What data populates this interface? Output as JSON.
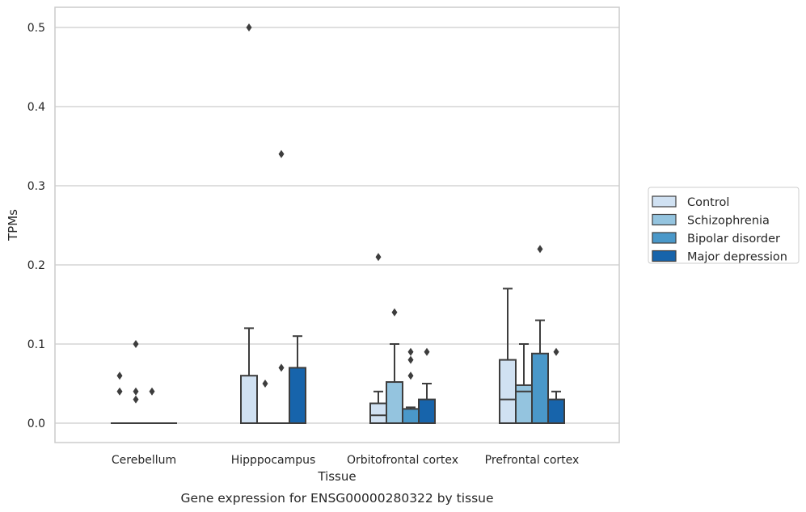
{
  "caption": "Gene expression for ENSG00000280322 by tissue",
  "chart_data": {
    "type": "box",
    "xlabel": "Tissue",
    "ylabel": "TPMs",
    "ylim": [
      -0.025,
      0.525
    ],
    "yticks": [
      0.0,
      0.1,
      0.2,
      0.3,
      0.4,
      0.5
    ],
    "ytick_labels": [
      "0.0",
      "0.1",
      "0.2",
      "0.3",
      "0.4",
      "0.5"
    ],
    "grid": "horizontal",
    "legend_position": "right",
    "categories": [
      "Cerebellum",
      "Hipppocampus",
      "Orbitofrontal cortex",
      "Prefrontal cortex"
    ],
    "series": [
      {
        "name": "Control",
        "color": "#d0e1f2",
        "boxes": [
          {
            "q1": 0,
            "median": 0,
            "q3": 0,
            "whisker_low": 0,
            "whisker_high": 0,
            "outliers": [
              0.04,
              0.06
            ]
          },
          {
            "q1": 0,
            "median": 0,
            "q3": 0.06,
            "whisker_low": 0,
            "whisker_high": 0.12,
            "outliers": [
              0.5
            ]
          },
          {
            "q1": 0,
            "median": 0.01,
            "q3": 0.025,
            "whisker_low": 0,
            "whisker_high": 0.04,
            "outliers": [
              0.21
            ]
          },
          {
            "q1": 0,
            "median": 0.03,
            "q3": 0.08,
            "whisker_low": 0,
            "whisker_high": 0.17,
            "outliers": []
          }
        ]
      },
      {
        "name": "Schizophrenia",
        "color": "#94c4df",
        "boxes": [
          {
            "q1": 0,
            "median": 0,
            "q3": 0,
            "whisker_low": 0,
            "whisker_high": 0,
            "outliers": [
              0.1,
              0.03,
              0.04
            ]
          },
          {
            "q1": 0,
            "median": 0,
            "q3": 0,
            "whisker_low": 0,
            "whisker_high": 0,
            "outliers": [
              0.05
            ]
          },
          {
            "q1": 0,
            "median": 0,
            "q3": 0.052,
            "whisker_low": 0,
            "whisker_high": 0.1,
            "outliers": [
              0.14
            ]
          },
          {
            "q1": 0,
            "median": 0.04,
            "q3": 0.048,
            "whisker_low": 0,
            "whisker_high": 0.1,
            "outliers": []
          }
        ]
      },
      {
        "name": "Bipolar disorder",
        "color": "#4a98c9",
        "boxes": [
          {
            "q1": 0,
            "median": 0,
            "q3": 0,
            "whisker_low": 0,
            "whisker_high": 0,
            "outliers": [
              0.04
            ]
          },
          {
            "q1": 0,
            "median": 0,
            "q3": 0,
            "whisker_low": 0,
            "whisker_high": 0,
            "outliers": [
              0.07,
              0.34
            ]
          },
          {
            "q1": 0,
            "median": 0,
            "q3": 0.018,
            "whisker_low": 0,
            "whisker_high": 0.02,
            "outliers": [
              0.06,
              0.08,
              0.09
            ]
          },
          {
            "q1": 0,
            "median": 0,
            "q3": 0.088,
            "whisker_low": 0,
            "whisker_high": 0.13,
            "outliers": [
              0.22
            ]
          }
        ]
      },
      {
        "name": "Major depression",
        "color": "#1764ab",
        "boxes": [
          {
            "q1": 0,
            "median": 0,
            "q3": 0,
            "whisker_low": 0,
            "whisker_high": 0,
            "outliers": []
          },
          {
            "q1": 0,
            "median": 0,
            "q3": 0.07,
            "whisker_low": 0,
            "whisker_high": 0.11,
            "outliers": []
          },
          {
            "q1": 0,
            "median": 0,
            "q3": 0.03,
            "whisker_low": 0,
            "whisker_high": 0.05,
            "outliers": [
              0.09
            ]
          },
          {
            "q1": 0,
            "median": 0,
            "q3": 0.03,
            "whisker_low": 0,
            "whisker_high": 0.04,
            "outliers": [
              0.09
            ]
          }
        ]
      }
    ]
  }
}
